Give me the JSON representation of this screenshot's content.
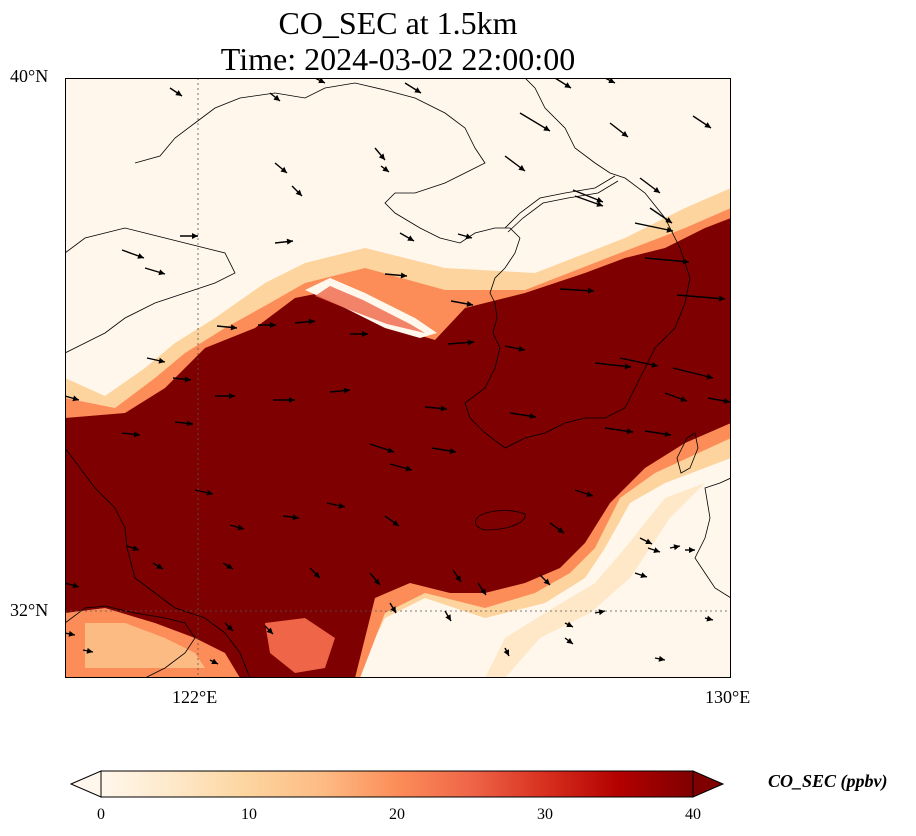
{
  "title_line1": "CO_SEC at 1.5km",
  "title_line2": "Time: 2024-03-02 22:00:00",
  "axes": {
    "lat_labels": [
      "40°N",
      "32°N"
    ],
    "lon_labels": [
      "122°E",
      "130°E"
    ],
    "lat_range": [
      31,
      40
    ],
    "lon_range": [
      120,
      130
    ],
    "gridlines": "dotted"
  },
  "colorbar": {
    "label": "CO_SEC (ppbv)",
    "ticks": [
      "0",
      "10",
      "20",
      "30",
      "40"
    ],
    "range": [
      0,
      40
    ],
    "colormap": "OrRd",
    "extend": "both",
    "colors": [
      "#fff7ec",
      "#fee8c8",
      "#fdd49e",
      "#fdbb84",
      "#fc8d59",
      "#ef6548",
      "#d7301f",
      "#b30000",
      "#7f0000"
    ]
  },
  "chart_data": {
    "type": "heatmap",
    "variable": "CO_SEC",
    "units": "ppbv",
    "description_regions": [
      {
        "region": "east china sea / south yellow sea",
        "level": "high (>=40)"
      },
      {
        "region": "north china / bohai",
        "level": "low (~0)"
      },
      {
        "region": "southeast corner",
        "level": "low (~0)"
      }
    ]
  }
}
